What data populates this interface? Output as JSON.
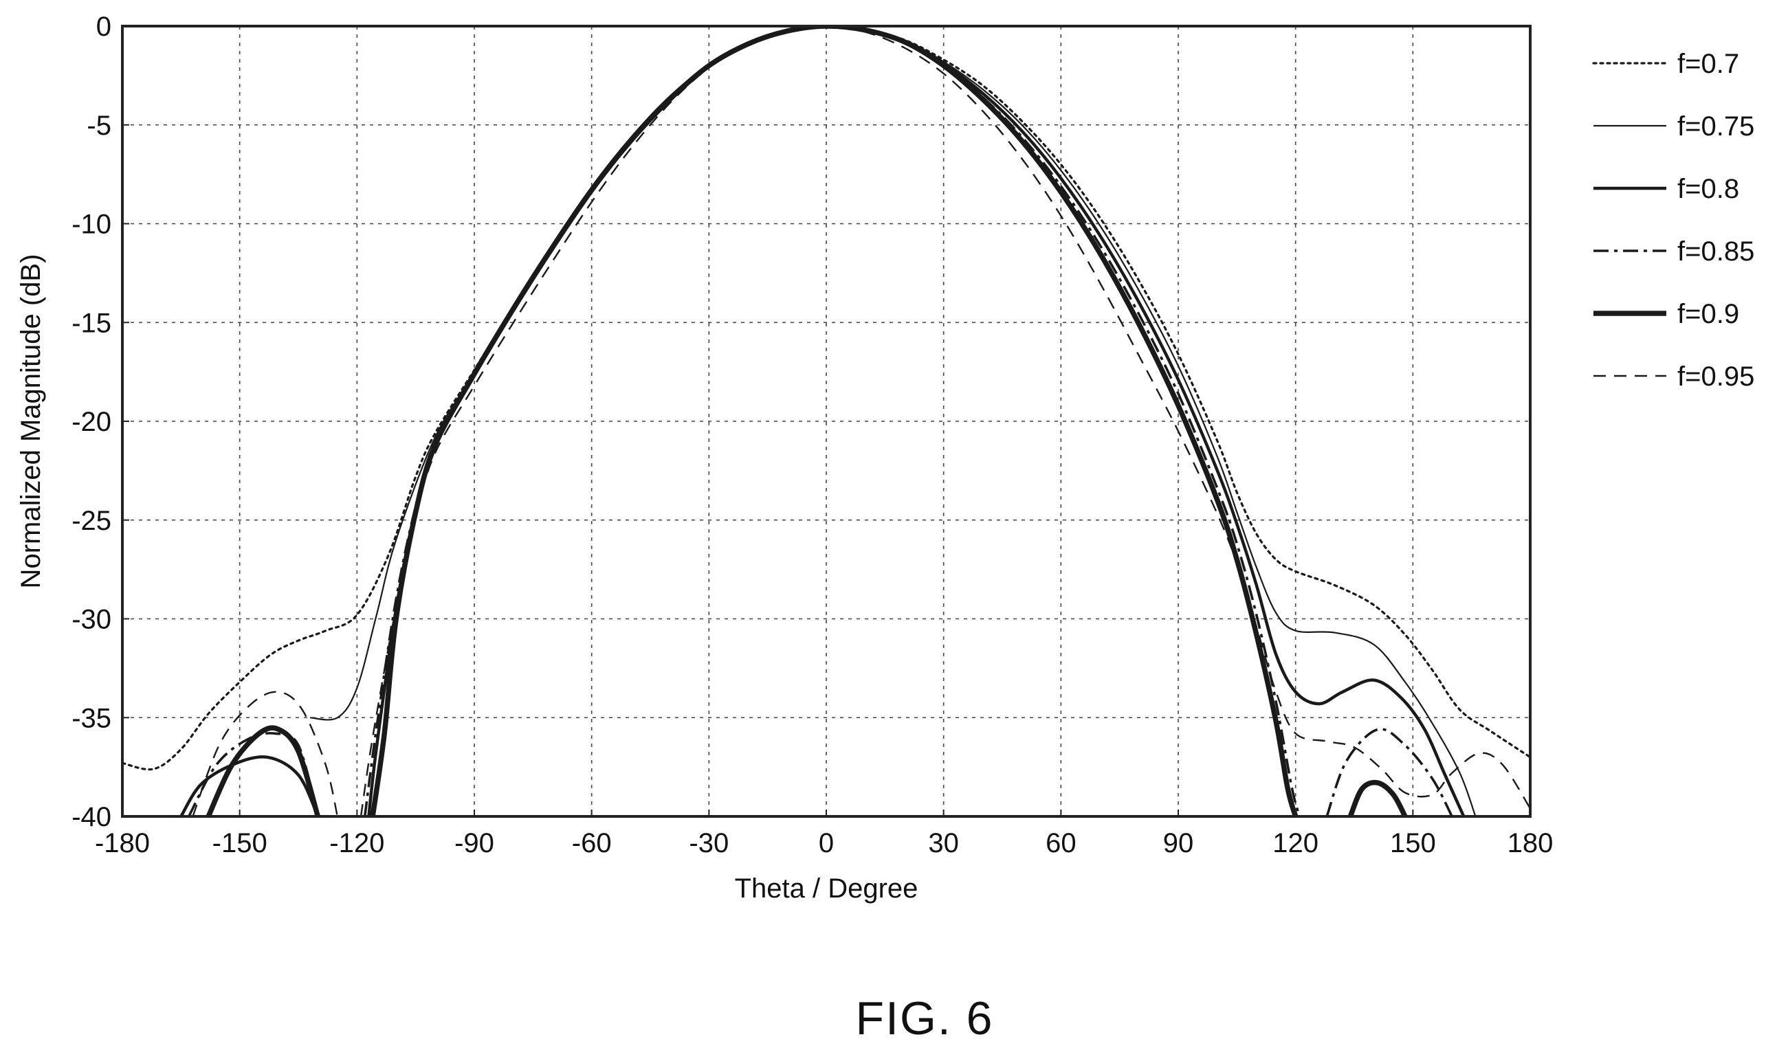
{
  "caption": "FIG. 6",
  "chart_data": {
    "type": "line",
    "title": "",
    "xlabel": "Theta / Degree",
    "ylabel": "Normalized Magnitude (dB)",
    "xlim": [
      -180,
      180
    ],
    "ylim": [
      -40,
      0
    ],
    "xticks": [
      -180,
      -150,
      -120,
      -90,
      -60,
      -30,
      0,
      30,
      60,
      90,
      120,
      150,
      180
    ],
    "yticks": [
      0,
      -5,
      -10,
      -15,
      -20,
      -25,
      -30,
      -35,
      -40
    ],
    "grid": true,
    "legend_position": "right",
    "series": [
      {
        "name": "f=0.7",
        "style": "dotted",
        "segments": [
          [
            [
              -180,
              -37.3
            ],
            [
              -172,
              -37.6
            ],
            [
              -165,
              -36.6
            ],
            [
              -158,
              -34.8
            ],
            [
              -150,
              -33.2
            ],
            [
              -142,
              -31.8
            ],
            [
              -135,
              -31.1
            ],
            [
              -128,
              -30.6
            ],
            [
              -120,
              -29.8
            ],
            [
              -112,
              -26.8
            ],
            [
              -105,
              -22.8
            ],
            [
              -100,
              -20.6
            ],
            [
              -90,
              -17.4
            ],
            [
              -80,
              -14.2
            ],
            [
              -70,
              -11.1
            ],
            [
              -60,
              -8.2
            ],
            [
              -50,
              -5.7
            ],
            [
              -40,
              -3.6
            ],
            [
              -30,
              -2.0
            ],
            [
              -20,
              -0.9
            ],
            [
              -10,
              -0.25
            ],
            [
              0,
              0
            ],
            [
              10,
              -0.2
            ],
            [
              20,
              -0.7
            ],
            [
              30,
              -1.7
            ],
            [
              40,
              -3.0
            ],
            [
              50,
              -4.8
            ],
            [
              60,
              -7.0
            ],
            [
              70,
              -9.7
            ],
            [
              80,
              -12.9
            ],
            [
              90,
              -16.6
            ],
            [
              100,
              -21.0
            ],
            [
              105,
              -23.6
            ],
            [
              110,
              -25.7
            ],
            [
              115,
              -27.0
            ],
            [
              120,
              -27.6
            ],
            [
              130,
              -28.3
            ],
            [
              140,
              -29.3
            ],
            [
              148,
              -30.8
            ],
            [
              155,
              -32.6
            ],
            [
              162,
              -34.6
            ],
            [
              170,
              -35.7
            ],
            [
              180,
              -37.0
            ]
          ]
        ]
      },
      {
        "name": "f=0.75",
        "style": "solid-thin",
        "segments": [
          [
            [
              -132,
              -35.0
            ],
            [
              -125,
              -35.0
            ],
            [
              -120,
              -33.5
            ],
            [
              -115,
              -29.8
            ],
            [
              -110,
              -26.0
            ],
            [
              -100,
              -20.8
            ],
            [
              -90,
              -17.6
            ],
            [
              -80,
              -14.3
            ],
            [
              -70,
              -11.2
            ],
            [
              -60,
              -8.3
            ],
            [
              -50,
              -5.8
            ],
            [
              -40,
              -3.6
            ],
            [
              -30,
              -2.0
            ],
            [
              -20,
              -0.9
            ],
            [
              -10,
              -0.25
            ],
            [
              0,
              0
            ],
            [
              10,
              -0.2
            ],
            [
              20,
              -0.7
            ],
            [
              30,
              -1.8
            ],
            [
              40,
              -3.2
            ],
            [
              50,
              -5.0
            ],
            [
              60,
              -7.3
            ],
            [
              70,
              -10.1
            ],
            [
              80,
              -13.4
            ],
            [
              90,
              -17.2
            ],
            [
              100,
              -21.8
            ],
            [
              105,
              -24.6
            ],
            [
              110,
              -27.4
            ],
            [
              115,
              -29.7
            ],
            [
              120,
              -30.6
            ],
            [
              130,
              -30.7
            ],
            [
              140,
              -31.3
            ],
            [
              148,
              -33.2
            ],
            [
              155,
              -35.3
            ],
            [
              162,
              -37.8
            ],
            [
              166,
              -40
            ]
          ]
        ]
      },
      {
        "name": "f=0.8",
        "style": "solid-medium",
        "segments": [
          [
            [
              -165,
              -40
            ],
            [
              -160,
              -38.4
            ],
            [
              -152,
              -37.4
            ],
            [
              -143,
              -37.0
            ],
            [
              -135,
              -37.9
            ],
            [
              -130,
              -40
            ]
          ],
          [
            [
              -117,
              -40
            ],
            [
              -115,
              -36.5
            ],
            [
              -110,
              -29.5
            ],
            [
              -105,
              -24.5
            ],
            [
              -100,
              -21.2
            ],
            [
              -90,
              -17.6
            ],
            [
              -80,
              -14.2
            ],
            [
              -70,
              -11.1
            ],
            [
              -60,
              -8.2
            ],
            [
              -50,
              -5.7
            ],
            [
              -40,
              -3.6
            ],
            [
              -30,
              -2.0
            ],
            [
              -20,
              -0.9
            ],
            [
              -10,
              -0.25
            ],
            [
              0,
              0
            ],
            [
              10,
              -0.2
            ],
            [
              20,
              -0.8
            ],
            [
              30,
              -1.9
            ],
            [
              40,
              -3.4
            ],
            [
              50,
              -5.3
            ],
            [
              60,
              -7.7
            ],
            [
              70,
              -10.6
            ],
            [
              80,
              -14.0
            ],
            [
              90,
              -17.9
            ],
            [
              100,
              -22.5
            ],
            [
              105,
              -25.2
            ],
            [
              110,
              -28.3
            ],
            [
              115,
              -31.8
            ],
            [
              120,
              -33.7
            ],
            [
              126,
              -34.3
            ],
            [
              132,
              -33.7
            ],
            [
              140,
              -33.1
            ],
            [
              147,
              -34.0
            ],
            [
              153,
              -35.6
            ],
            [
              158,
              -37.8
            ],
            [
              163,
              -40
            ]
          ]
        ]
      },
      {
        "name": "f=0.85",
        "style": "dash-dot",
        "segments": [
          [
            [
              -163,
              -40
            ],
            [
              -156,
              -37.4
            ],
            [
              -148,
              -36.1
            ],
            [
              -141,
              -35.8
            ],
            [
              -135,
              -36.4
            ],
            [
              -130,
              -40
            ]
          ],
          [
            [
              -118,
              -40
            ],
            [
              -115,
              -35.5
            ],
            [
              -110,
              -29.0
            ],
            [
              -105,
              -24.3
            ],
            [
              -100,
              -21.0
            ],
            [
              -90,
              -17.6
            ],
            [
              -80,
              -14.3
            ],
            [
              -70,
              -11.2
            ],
            [
              -60,
              -8.3
            ],
            [
              -50,
              -5.8
            ],
            [
              -40,
              -3.7
            ],
            [
              -30,
              -2.0
            ],
            [
              -20,
              -0.9
            ],
            [
              -10,
              -0.25
            ],
            [
              0,
              0
            ],
            [
              10,
              -0.2
            ],
            [
              20,
              -0.8
            ],
            [
              30,
              -2.0
            ],
            [
              40,
              -3.6
            ],
            [
              50,
              -5.6
            ],
            [
              60,
              -8.1
            ],
            [
              70,
              -11.1
            ],
            [
              80,
              -14.6
            ],
            [
              90,
              -18.6
            ],
            [
              100,
              -23.4
            ],
            [
              105,
              -26.2
            ],
            [
              110,
              -29.8
            ],
            [
              115,
              -34.2
            ],
            [
              119,
              -38.5
            ],
            [
              121,
              -40
            ]
          ],
          [
            [
              128,
              -40
            ],
            [
              133,
              -37.2
            ],
            [
              141,
              -35.6
            ],
            [
              148,
              -36.4
            ],
            [
              155,
              -38.1
            ],
            [
              160,
              -40
            ]
          ]
        ]
      },
      {
        "name": "f=0.9",
        "style": "solid-thick",
        "segments": [
          [
            [
              -158,
              -40
            ],
            [
              -152,
              -37.4
            ],
            [
              -145,
              -35.8
            ],
            [
              -140,
              -35.6
            ],
            [
              -135,
              -36.7
            ],
            [
              -130,
              -40
            ]
          ],
          [
            [
              -116,
              -40
            ],
            [
              -113,
              -35.8
            ],
            [
              -110,
              -30.0
            ],
            [
              -105,
              -24.6
            ],
            [
              -100,
              -21.2
            ],
            [
              -90,
              -17.6
            ],
            [
              -80,
              -14.3
            ],
            [
              -70,
              -11.2
            ],
            [
              -60,
              -8.3
            ],
            [
              -50,
              -5.8
            ],
            [
              -40,
              -3.7
            ],
            [
              -30,
              -2.0
            ],
            [
              -20,
              -0.9
            ],
            [
              -10,
              -0.25
            ],
            [
              0,
              0
            ],
            [
              10,
              -0.2
            ],
            [
              20,
              -0.8
            ],
            [
              30,
              -2.0
            ],
            [
              40,
              -3.7
            ],
            [
              50,
              -5.8
            ],
            [
              60,
              -8.4
            ],
            [
              70,
              -11.5
            ],
            [
              80,
              -15.1
            ],
            [
              90,
              -19.2
            ],
            [
              100,
              -24.0
            ],
            [
              105,
              -27.0
            ],
            [
              110,
              -30.8
            ],
            [
              115,
              -35.2
            ],
            [
              118,
              -38.6
            ],
            [
              120,
              -40
            ]
          ],
          [
            [
              134,
              -40
            ],
            [
              137,
              -38.6
            ],
            [
              141,
              -38.3
            ],
            [
              145,
              -38.9
            ],
            [
              148,
              -40
            ]
          ]
        ]
      },
      {
        "name": "f=0.95",
        "style": "dashed",
        "segments": [
          [
            [
              -162,
              -40
            ],
            [
              -155,
              -36.3
            ],
            [
              -147,
              -34.3
            ],
            [
              -140,
              -33.7
            ],
            [
              -134,
              -34.6
            ],
            [
              -128,
              -37.4
            ],
            [
              -125,
              -40
            ]
          ],
          [
            [
              -119,
              -40
            ],
            [
              -116,
              -36.0
            ],
            [
              -110,
              -29.4
            ],
            [
              -105,
              -24.8
            ],
            [
              -100,
              -21.6
            ],
            [
              -90,
              -18.2
            ],
            [
              -80,
              -15.0
            ],
            [
              -70,
              -11.9
            ],
            [
              -60,
              -8.9
            ],
            [
              -50,
              -6.2
            ],
            [
              -40,
              -3.9
            ],
            [
              -30,
              -2.1
            ],
            [
              -20,
              -0.9
            ],
            [
              -10,
              -0.25
            ],
            [
              0,
              0
            ],
            [
              10,
              -0.3
            ],
            [
              20,
              -1.1
            ],
            [
              30,
              -2.4
            ],
            [
              40,
              -4.3
            ],
            [
              50,
              -6.7
            ],
            [
              60,
              -9.6
            ],
            [
              70,
              -13.0
            ],
            [
              80,
              -16.7
            ],
            [
              90,
              -20.5
            ],
            [
              100,
              -24.7
            ],
            [
              105,
              -27.2
            ],
            [
              110,
              -30.4
            ],
            [
              115,
              -33.7
            ],
            [
              120,
              -35.8
            ],
            [
              128,
              -36.2
            ],
            [
              135,
              -36.5
            ],
            [
              142,
              -37.6
            ],
            [
              148,
              -38.8
            ],
            [
              155,
              -38.9
            ],
            [
              160,
              -37.8
            ],
            [
              167,
              -36.8
            ],
            [
              173,
              -37.4
            ],
            [
              180,
              -39.6
            ]
          ]
        ]
      }
    ]
  }
}
